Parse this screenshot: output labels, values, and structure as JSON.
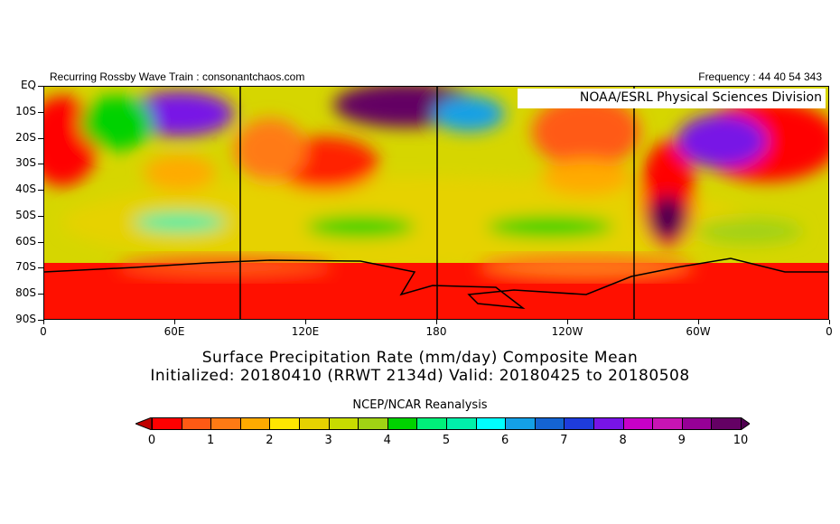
{
  "header": {
    "left": "Recurring Rossby Wave Train : consonantchaos.com",
    "right": "Frequency : 44 40 54 343"
  },
  "map": {
    "organization": "NOAA/ESRL Physical Sciences Division",
    "y_labels": [
      "EQ",
      "10S",
      "20S",
      "30S",
      "40S",
      "50S",
      "60S",
      "70S",
      "80S",
      "90S"
    ],
    "x_labels": [
      "0",
      "60E",
      "120E",
      "180",
      "120W",
      "60W",
      "0"
    ],
    "vertical_lines_lon": [
      90,
      180,
      270
    ]
  },
  "titles": {
    "line1": "Surface Precipitation Rate (mm/day) Composite Mean",
    "line2": "Initialized: 20180410 (RRWT 2134d) Valid: 20180425 to 20180508"
  },
  "colorbar": {
    "label": "NCEP/NCAR Reanalysis",
    "tick_labels": [
      "0",
      "1",
      "2",
      "3",
      "4",
      "5",
      "6",
      "7",
      "8",
      "9",
      "10"
    ],
    "under_color": "#c00000",
    "over_color": "#500050",
    "colors": [
      "#ff0000",
      "#ff5a14",
      "#ff7a14",
      "#ffaa00",
      "#ffe600",
      "#e6d200",
      "#c8dc00",
      "#a0d214",
      "#00d200",
      "#00f07a",
      "#00f0aa",
      "#00ffff",
      "#14a0e6",
      "#1464d2",
      "#1e3cdc",
      "#7814e6",
      "#c800c8",
      "#c814b4",
      "#960096",
      "#640064"
    ]
  }
}
